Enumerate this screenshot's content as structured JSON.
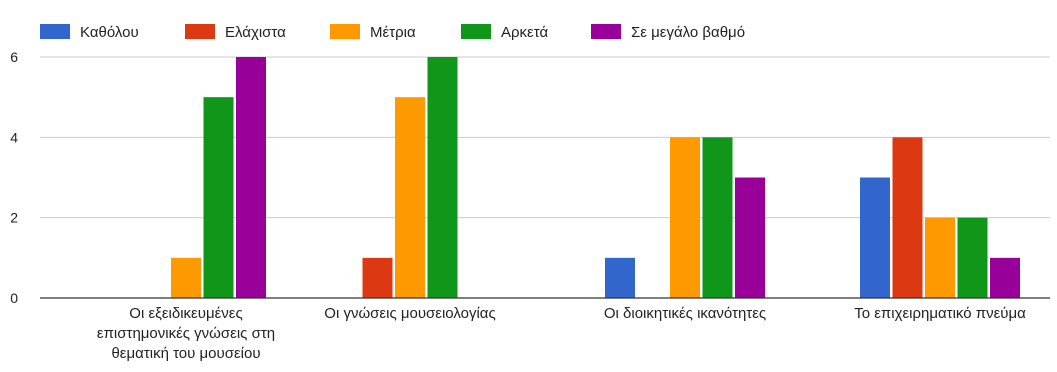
{
  "chart_data": {
    "type": "bar",
    "title": "",
    "xlabel": "",
    "ylabel": "",
    "ylim": [
      0,
      6
    ],
    "y_ticks": [
      "0",
      "2",
      "4",
      "6"
    ],
    "grid": true,
    "legend_position": "top-left",
    "categories": [
      [
        "Οι εξειδικευμένες",
        "επιστημονικές γνώσεις στη",
        "θεματική του μουσείου"
      ],
      [
        "Οι γνώσεις μουσειολογίας"
      ],
      [
        "Οι διοικητικές ικανότητες"
      ],
      [
        "Το επιχειρηματικό πνεύμα"
      ]
    ],
    "series": [
      {
        "name": "Καθόλου",
        "color": "#3366cc",
        "values": [
          0,
          0,
          1,
          3
        ]
      },
      {
        "name": "Ελάχιστα",
        "color": "#dc3912",
        "values": [
          0,
          1,
          0,
          4
        ]
      },
      {
        "name": "Μέτρια",
        "color": "#ff9900",
        "values": [
          1,
          5,
          4,
          2
        ]
      },
      {
        "name": "Αρκετά",
        "color": "#109618",
        "values": [
          5,
          6,
          4,
          2
        ]
      },
      {
        "name": "Σε μεγάλο βαθμό",
        "color": "#990099",
        "values": [
          6,
          0,
          3,
          1
        ]
      }
    ],
    "axis_color": "#333333",
    "grid_color": "#cccccc",
    "text_color": "#222222"
  }
}
